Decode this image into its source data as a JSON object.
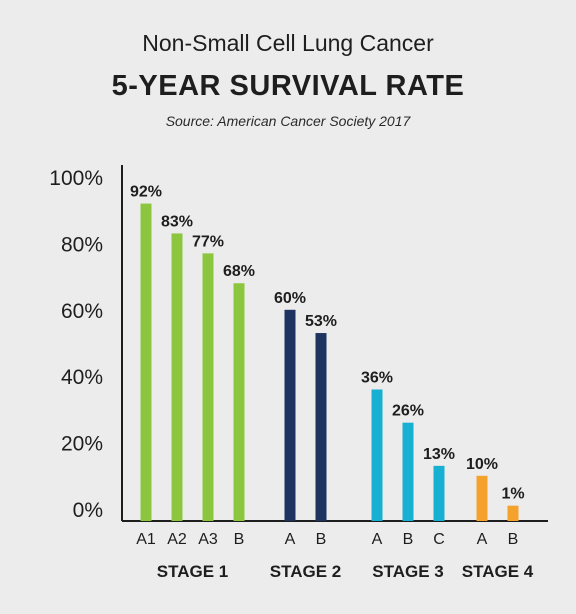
{
  "chart_data": {
    "type": "bar",
    "title": "Non-Small Cell Lung Cancer",
    "subtitle": "5-YEAR SURVIVAL RATE",
    "source": "Source: American Cancer Society 2017",
    "ylim": [
      0,
      100
    ],
    "yticks": [
      "0%",
      "20%",
      "40%",
      "60%",
      "80%",
      "100%"
    ],
    "grid": false,
    "groups": [
      {
        "name": "STAGE 1",
        "color": "#8cc63e",
        "bars": [
          {
            "label": "A1",
            "value": 92,
            "text": "92%"
          },
          {
            "label": "A2",
            "value": 83,
            "text": "83%"
          },
          {
            "label": "A3",
            "value": 77,
            "text": "77%"
          },
          {
            "label": "B",
            "value": 68,
            "text": "68%"
          }
        ]
      },
      {
        "name": "STAGE 2",
        "color": "#1d3461",
        "bars": [
          {
            "label": "A",
            "value": 60,
            "text": "60%"
          },
          {
            "label": "B",
            "value": 53,
            "text": "53%"
          }
        ]
      },
      {
        "name": "STAGE 3",
        "color": "#18b0d2",
        "bars": [
          {
            "label": "A",
            "value": 36,
            "text": "36%"
          },
          {
            "label": "B",
            "value": 26,
            "text": "26%"
          },
          {
            "label": "C",
            "value": 13,
            "text": "13%"
          }
        ]
      },
      {
        "name": "STAGE 4",
        "color": "#f5a22c",
        "bars": [
          {
            "label": "A",
            "value": 10,
            "text": "10%"
          },
          {
            "label": "B",
            "value": 1,
            "text": "1%"
          }
        ]
      }
    ]
  }
}
